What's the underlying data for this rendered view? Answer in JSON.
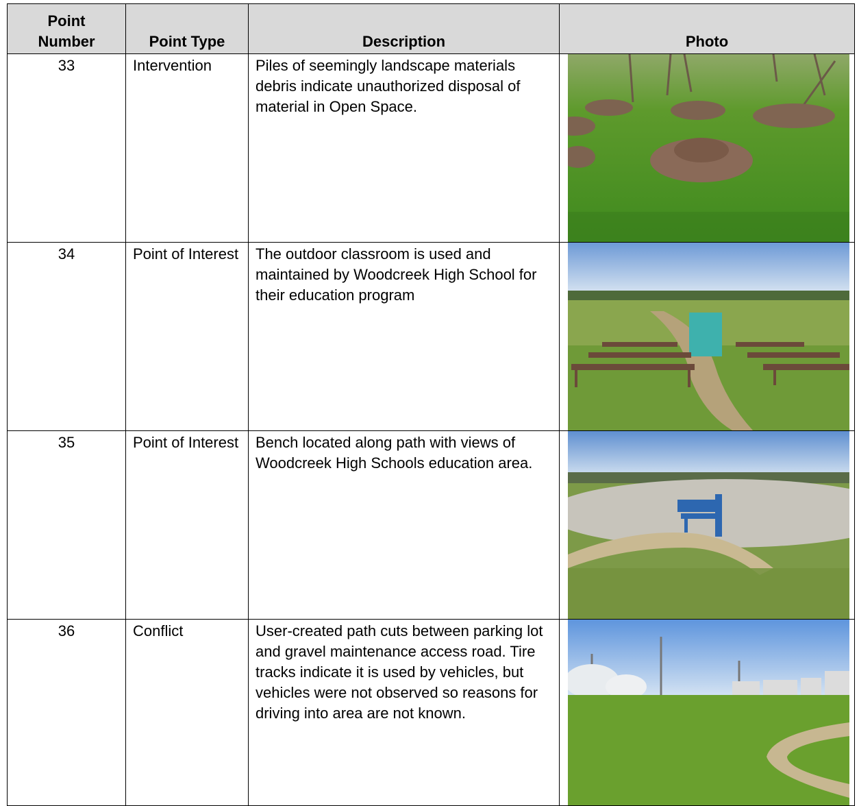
{
  "table": {
    "header": [
      "Point Number",
      "Point Type",
      "Description",
      "Photo"
    ],
    "rows": [
      [
        "33",
        "Intervention",
        "Piles of seemingly landscape materials debris indicate unauthorized disposal of material in Open Space."
      ],
      [
        "34",
        "Point of Interest",
        "The outdoor classroom is used and maintained by Woodcreek High School for their education program"
      ],
      [
        "35",
        "Point of Interest",
        "Bench located along path with views of Woodcreek High Schools education area."
      ],
      [
        "36",
        "Conflict",
        "User-created path cuts between parking lot and gravel maintenance access road. Tire tracks indicate it is used by vehicles, but vehicles were not observed so reasons for driving into area are not known."
      ]
    ]
  }
}
